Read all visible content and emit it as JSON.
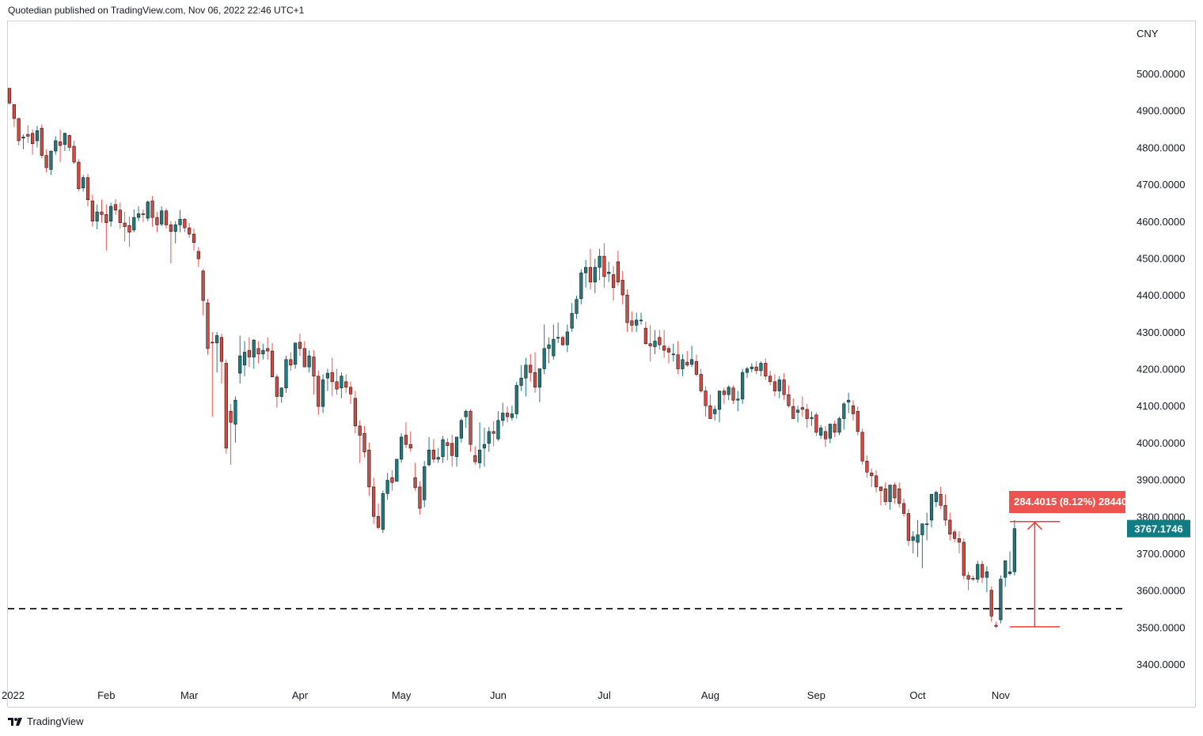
{
  "header": {
    "published_text": "Quotedian published on TradingView.com, Nov 06, 2022 22:46 UTC+1"
  },
  "footer": {
    "brand_text": "TradingView",
    "logo_icon": "tradingview-logo-icon"
  },
  "colors": {
    "up": "#26a69a",
    "up_body": "#1f7a80",
    "down": "#ef5350",
    "down_body": "#d9473f",
    "badge_last": "#0f7d83",
    "badge_measure": "#ef5350",
    "dashed": "#000000",
    "measure": "#ef3b36"
  },
  "chart_data": {
    "type": "candlestick",
    "currency": "CNY",
    "ylim": [
      3320,
      5160
    ],
    "y_ticks": [
      5000,
      4900,
      4800,
      4700,
      4600,
      4500,
      4400,
      4300,
      4200,
      4100,
      4000,
      3900,
      3800,
      3700,
      3600,
      3500,
      3400
    ],
    "y_tick_labels": [
      "5000.0000",
      "4900.0000",
      "4800.0000",
      "4700.0000",
      "4600.0000",
      "4500.0000",
      "4400.0000",
      "4300.0000",
      "4200.0000",
      "4100.0000",
      "4000.0000",
      "3900.0000",
      "3800.0000",
      "3700.0000",
      "3600.0000",
      "3500.0000",
      "3400.0000"
    ],
    "x_axis_labels": [
      {
        "label": "2022",
        "index": 0
      },
      {
        "label": "Feb",
        "index": 21
      },
      {
        "label": "Mar",
        "index": 39
      },
      {
        "label": "Apr",
        "index": 63
      },
      {
        "label": "May",
        "index": 85
      },
      {
        "label": "Jun",
        "index": 106
      },
      {
        "label": "Jul",
        "index": 129
      },
      {
        "label": "Aug",
        "index": 152
      },
      {
        "label": "Sep",
        "index": 175
      },
      {
        "label": "Oct",
        "index": 197
      },
      {
        "label": "Nov",
        "index": 215
      }
    ],
    "last_price": "3767.1746",
    "support_level": 3550,
    "measure": {
      "label": "284.4015 (8.12%) 28440",
      "from_index": 218,
      "to_index": 223,
      "low": 3501,
      "high": 3786
    },
    "candles": [
      [
        4960,
        4955,
        4915,
        4920
      ],
      [
        4916,
        4916,
        4855,
        4878
      ],
      [
        4878,
        4880,
        4805,
        4818
      ],
      [
        4825,
        4835,
        4795,
        4828
      ],
      [
        4835,
        4860,
        4812,
        4830
      ],
      [
        4838,
        4848,
        4780,
        4810
      ],
      [
        4818,
        4858,
        4800,
        4845
      ],
      [
        4852,
        4862,
        4770,
        4778
      ],
      [
        4778,
        4795,
        4732,
        4745
      ],
      [
        4740,
        4790,
        4725,
        4790
      ],
      [
        4790,
        4830,
        4780,
        4818
      ],
      [
        4815,
        4848,
        4760,
        4805
      ],
      [
        4808,
        4840,
        4790,
        4838
      ],
      [
        4832,
        4835,
        4790,
        4800
      ],
      [
        4803,
        4818,
        4755,
        4760
      ],
      [
        4760,
        4768,
        4680,
        4688
      ],
      [
        4690,
        4725,
        4680,
        4718
      ],
      [
        4718,
        4728,
        4640,
        4658
      ],
      [
        4655,
        4672,
        4585,
        4600
      ],
      [
        4600,
        4645,
        4578,
        4625
      ],
      [
        4625,
        4658,
        4596,
        4618
      ],
      [
        4618,
        4645,
        4520,
        4596
      ],
      [
        4600,
        4650,
        4585,
        4640
      ],
      [
        4645,
        4660,
        4618,
        4630
      ],
      [
        4630,
        4650,
        4580,
        4596
      ],
      [
        4595,
        4625,
        4545,
        4585
      ],
      [
        4588,
        4612,
        4530,
        4570
      ],
      [
        4576,
        4632,
        4570,
        4610
      ],
      [
        4610,
        4640,
        4600,
        4620
      ],
      [
        4620,
        4632,
        4598,
        4618
      ],
      [
        4608,
        4656,
        4600,
        4652
      ],
      [
        4655,
        4668,
        4585,
        4610
      ],
      [
        4610,
        4625,
        4570,
        4590
      ],
      [
        4592,
        4640,
        4586,
        4628
      ],
      [
        4628,
        4635,
        4580,
        4590
      ],
      [
        4590,
        4600,
        4486,
        4572
      ],
      [
        4572,
        4600,
        4540,
        4590
      ],
      [
        4590,
        4630,
        4570,
        4605
      ],
      [
        4605,
        4608,
        4570,
        4582
      ],
      [
        4582,
        4595,
        4555,
        4565
      ],
      [
        4565,
        4580,
        4520,
        4542
      ],
      [
        4518,
        4530,
        4476,
        4498
      ],
      [
        4465,
        4470,
        4345,
        4385
      ],
      [
        4378,
        4390,
        4238,
        4255
      ],
      [
        4272,
        4300,
        4070,
        4270
      ],
      [
        4270,
        4300,
        4190,
        4290
      ],
      [
        4285,
        4295,
        4160,
        4220
      ],
      [
        4215,
        4225,
        3970,
        3985
      ],
      [
        4085,
        4105,
        3940,
        4055
      ],
      [
        4050,
        4125,
        4000,
        4115
      ],
      [
        4188,
        4290,
        4160,
        4235
      ],
      [
        4210,
        4275,
        4180,
        4245
      ],
      [
        4250,
        4285,
        4205,
        4232
      ],
      [
        4232,
        4280,
        4200,
        4278
      ],
      [
        4255,
        4275,
        4215,
        4240
      ],
      [
        4240,
        4268,
        4225,
        4250
      ],
      [
        4255,
        4285,
        4225,
        4248
      ],
      [
        4248,
        4270,
        4180,
        4178
      ],
      [
        4178,
        4185,
        4095,
        4125
      ],
      [
        4125,
        4150,
        4108,
        4148
      ],
      [
        4148,
        4235,
        4135,
        4225
      ],
      [
        4225,
        4245,
        4195,
        4210
      ],
      [
        4212,
        4265,
        4200,
        4270
      ],
      [
        4272,
        4295,
        4235,
        4255
      ],
      [
        4255,
        4275,
        4210,
        4205
      ],
      [
        4205,
        4250,
        4190,
        4235
      ],
      [
        4232,
        4250,
        4130,
        4180
      ],
      [
        4180,
        4195,
        4075,
        4098
      ],
      [
        4098,
        4185,
        4080,
        4170
      ],
      [
        4175,
        4200,
        4140,
        4188
      ],
      [
        4190,
        4230,
        4125,
        4165
      ],
      [
        4165,
        4200,
        4130,
        4145
      ],
      [
        4148,
        4190,
        4120,
        4180
      ],
      [
        4165,
        4185,
        4135,
        4150
      ],
      [
        4150,
        4165,
        4105,
        4132
      ],
      [
        4120,
        4140,
        4025,
        4045
      ],
      [
        4045,
        4060,
        3945,
        4020
      ],
      [
        4025,
        4045,
        3960,
        3975
      ],
      [
        3980,
        4000,
        3855,
        3880
      ],
      [
        3880,
        3905,
        3780,
        3800
      ],
      [
        3800,
        3835,
        3765,
        3770
      ],
      [
        3765,
        3870,
        3755,
        3862
      ],
      [
        3862,
        3918,
        3845,
        3898
      ],
      [
        3905,
        3925,
        3870,
        3892
      ],
      [
        3895,
        3955,
        3900,
        3955
      ],
      [
        3955,
        4025,
        3945,
        4015
      ],
      [
        4020,
        4055,
        3985,
        3995
      ],
      [
        3995,
        4030,
        3975,
        3985
      ],
      [
        3905,
        3945,
        3870,
        3878
      ],
      [
        3880,
        3895,
        3805,
        3822
      ],
      [
        3845,
        3950,
        3825,
        3935
      ],
      [
        3940,
        4015,
        3935,
        3980
      ],
      [
        3980,
        4010,
        3945,
        3955
      ],
      [
        3955,
        3985,
        3945,
        3960
      ],
      [
        3962,
        4018,
        3945,
        4008
      ],
      [
        4000,
        4012,
        3952,
        3992
      ],
      [
        3998,
        4022,
        3935,
        3965
      ],
      [
        3962,
        4012,
        3935,
        4015
      ],
      [
        4012,
        4065,
        4000,
        4060
      ],
      [
        4070,
        4090,
        4040,
        4085
      ],
      [
        4085,
        4090,
        3975,
        3995
      ],
      [
        3965,
        3990,
        3940,
        3948
      ],
      [
        3945,
        4055,
        3930,
        3980
      ],
      [
        3985,
        4040,
        3935,
        3995
      ],
      [
        3998,
        4042,
        3975,
        4030
      ],
      [
        4030,
        4058,
        3990,
        4025
      ],
      [
        4010,
        4085,
        4005,
        4060
      ],
      [
        4060,
        4108,
        4045,
        4080
      ],
      [
        4080,
        4098,
        4055,
        4070
      ],
      [
        4068,
        4100,
        4060,
        4078
      ],
      [
        4078,
        4165,
        4065,
        4155
      ],
      [
        4155,
        4210,
        4140,
        4175
      ],
      [
        4175,
        4230,
        4125,
        4210
      ],
      [
        4210,
        4240,
        4165,
        4190
      ],
      [
        4190,
        4245,
        4135,
        4150
      ],
      [
        4150,
        4200,
        4110,
        4200
      ],
      [
        4200,
        4320,
        4185,
        4255
      ],
      [
        4255,
        4285,
        4215,
        4265
      ],
      [
        4235,
        4320,
        4225,
        4280
      ],
      [
        4285,
        4325,
        4270,
        4285
      ],
      [
        4285,
        4290,
        4262,
        4265
      ],
      [
        4265,
        4320,
        4245,
        4300
      ],
      [
        4310,
        4378,
        4300,
        4350
      ],
      [
        4350,
        4398,
        4335,
        4388
      ],
      [
        4390,
        4470,
        4375,
        4460
      ],
      [
        4460,
        4495,
        4420,
        4475
      ],
      [
        4475,
        4525,
        4415,
        4435
      ],
      [
        4435,
        4498,
        4405,
        4475
      ],
      [
        4475,
        4525,
        4440,
        4505
      ],
      [
        4505,
        4540,
        4420,
        4450
      ],
      [
        4458,
        4490,
        4435,
        4462
      ],
      [
        4455,
        4478,
        4385,
        4420
      ],
      [
        4490,
        4520,
        4425,
        4435
      ],
      [
        4440,
        4465,
        4375,
        4400
      ],
      [
        4400,
        4415,
        4300,
        4325
      ],
      [
        4330,
        4355,
        4300,
        4318
      ],
      [
        4318,
        4352,
        4300,
        4332
      ],
      [
        4332,
        4352,
        4320,
        4332
      ],
      [
        4310,
        4328,
        4265,
        4268
      ],
      [
        4268,
        4318,
        4220,
        4262
      ],
      [
        4260,
        4305,
        4240,
        4275
      ],
      [
        4285,
        4305,
        4252,
        4265
      ],
      [
        4262,
        4305,
        4230,
        4250
      ],
      [
        4255,
        4262,
        4215,
        4245
      ],
      [
        4240,
        4268,
        4220,
        4240
      ],
      [
        4238,
        4275,
        4185,
        4200
      ],
      [
        4200,
        4240,
        4180,
        4225
      ],
      [
        4218,
        4248,
        4205,
        4210
      ],
      [
        4212,
        4262,
        4205,
        4225
      ],
      [
        4220,
        4238,
        4180,
        4185
      ],
      [
        4185,
        4200,
        4135,
        4140
      ],
      [
        4140,
        4152,
        4070,
        4100
      ],
      [
        4100,
        4130,
        4065,
        4065
      ],
      [
        4078,
        4100,
        4060,
        4090
      ],
      [
        4090,
        4140,
        4055,
        4140
      ],
      [
        4140,
        4148,
        4105,
        4130
      ],
      [
        4130,
        4155,
        4115,
        4150
      ],
      [
        4148,
        4155,
        4105,
        4115
      ],
      [
        4115,
        4140,
        4085,
        4118
      ],
      [
        4118,
        4200,
        4105,
        4190
      ],
      [
        4190,
        4205,
        4175,
        4200
      ],
      [
        4200,
        4215,
        4190,
        4205
      ],
      [
        4205,
        4220,
        4185,
        4195
      ],
      [
        4195,
        4220,
        4180,
        4215
      ],
      [
        4215,
        4228,
        4170,
        4180
      ],
      [
        4180,
        4195,
        4155,
        4165
      ],
      [
        4165,
        4185,
        4125,
        4140
      ],
      [
        4140,
        4180,
        4120,
        4170
      ],
      [
        4170,
        4188,
        4115,
        4130
      ],
      [
        4130,
        4155,
        4095,
        4100
      ],
      [
        4098,
        4120,
        4065,
        4065
      ],
      [
        4082,
        4100,
        4055,
        4088
      ],
      [
        4095,
        4125,
        4070,
        4090
      ],
      [
        4090,
        4105,
        4040,
        4065
      ],
      [
        4065,
        4085,
        4045,
        4068
      ],
      [
        4075,
        4082,
        4018,
        4028
      ],
      [
        4020,
        4048,
        4010,
        4040
      ],
      [
        4030,
        4045,
        3988,
        4010
      ],
      [
        4012,
        4052,
        3998,
        4050
      ],
      [
        4050,
        4060,
        4015,
        4028
      ],
      [
        4028,
        4070,
        4020,
        4065
      ],
      [
        4065,
        4110,
        4035,
        4105
      ],
      [
        4110,
        4135,
        4080,
        4115
      ],
      [
        4100,
        4115,
        4060,
        4078
      ],
      [
        4085,
        4098,
        4020,
        4030
      ],
      [
        4028,
        4038,
        3940,
        3950
      ],
      [
        3950,
        3965,
        3905,
        3920
      ],
      [
        3918,
        3930,
        3880,
        3910
      ],
      [
        3910,
        3925,
        3865,
        3880
      ],
      [
        3880,
        3880,
        3830,
        3870
      ],
      [
        3875,
        3892,
        3830,
        3840
      ],
      [
        3840,
        3880,
        3818,
        3885
      ],
      [
        3885,
        3892,
        3835,
        3850
      ],
      [
        3875,
        3892,
        3825,
        3835
      ],
      [
        3835,
        3848,
        3800,
        3808
      ],
      [
        3808,
        3820,
        3720,
        3735
      ],
      [
        3735,
        3760,
        3700,
        3745
      ],
      [
        3730,
        3790,
        3690,
        3750
      ],
      [
        3750,
        3780,
        3660,
        3780
      ],
      [
        3780,
        3810,
        3735,
        3780
      ],
      [
        3790,
        3860,
        3770,
        3860
      ],
      [
        3840,
        3870,
        3825,
        3865
      ],
      [
        3860,
        3880,
        3820,
        3830
      ],
      [
        3830,
        3860,
        3775,
        3790
      ],
      [
        3790,
        3810,
        3735,
        3752
      ],
      [
        3758,
        3765,
        3730,
        3740
      ],
      [
        3740,
        3760,
        3700,
        3730
      ],
      [
        3730,
        3740,
        3630,
        3640
      ],
      [
        3640,
        3650,
        3600,
        3630
      ],
      [
        3632,
        3640,
        3625,
        3630
      ],
      [
        3630,
        3680,
        3620,
        3670
      ],
      [
        3670,
        3680,
        3620,
        3635
      ],
      [
        3635,
        3665,
        3595,
        3650
      ],
      [
        3600,
        3610,
        3515,
        3530
      ],
      [
        3505,
        3515,
        3498,
        3502
      ],
      [
        3520,
        3640,
        3510,
        3630
      ],
      [
        3635,
        3680,
        3610,
        3680
      ],
      [
        3645,
        3705,
        3640,
        3650
      ],
      [
        3650,
        3790,
        3640,
        3767
      ]
    ]
  }
}
